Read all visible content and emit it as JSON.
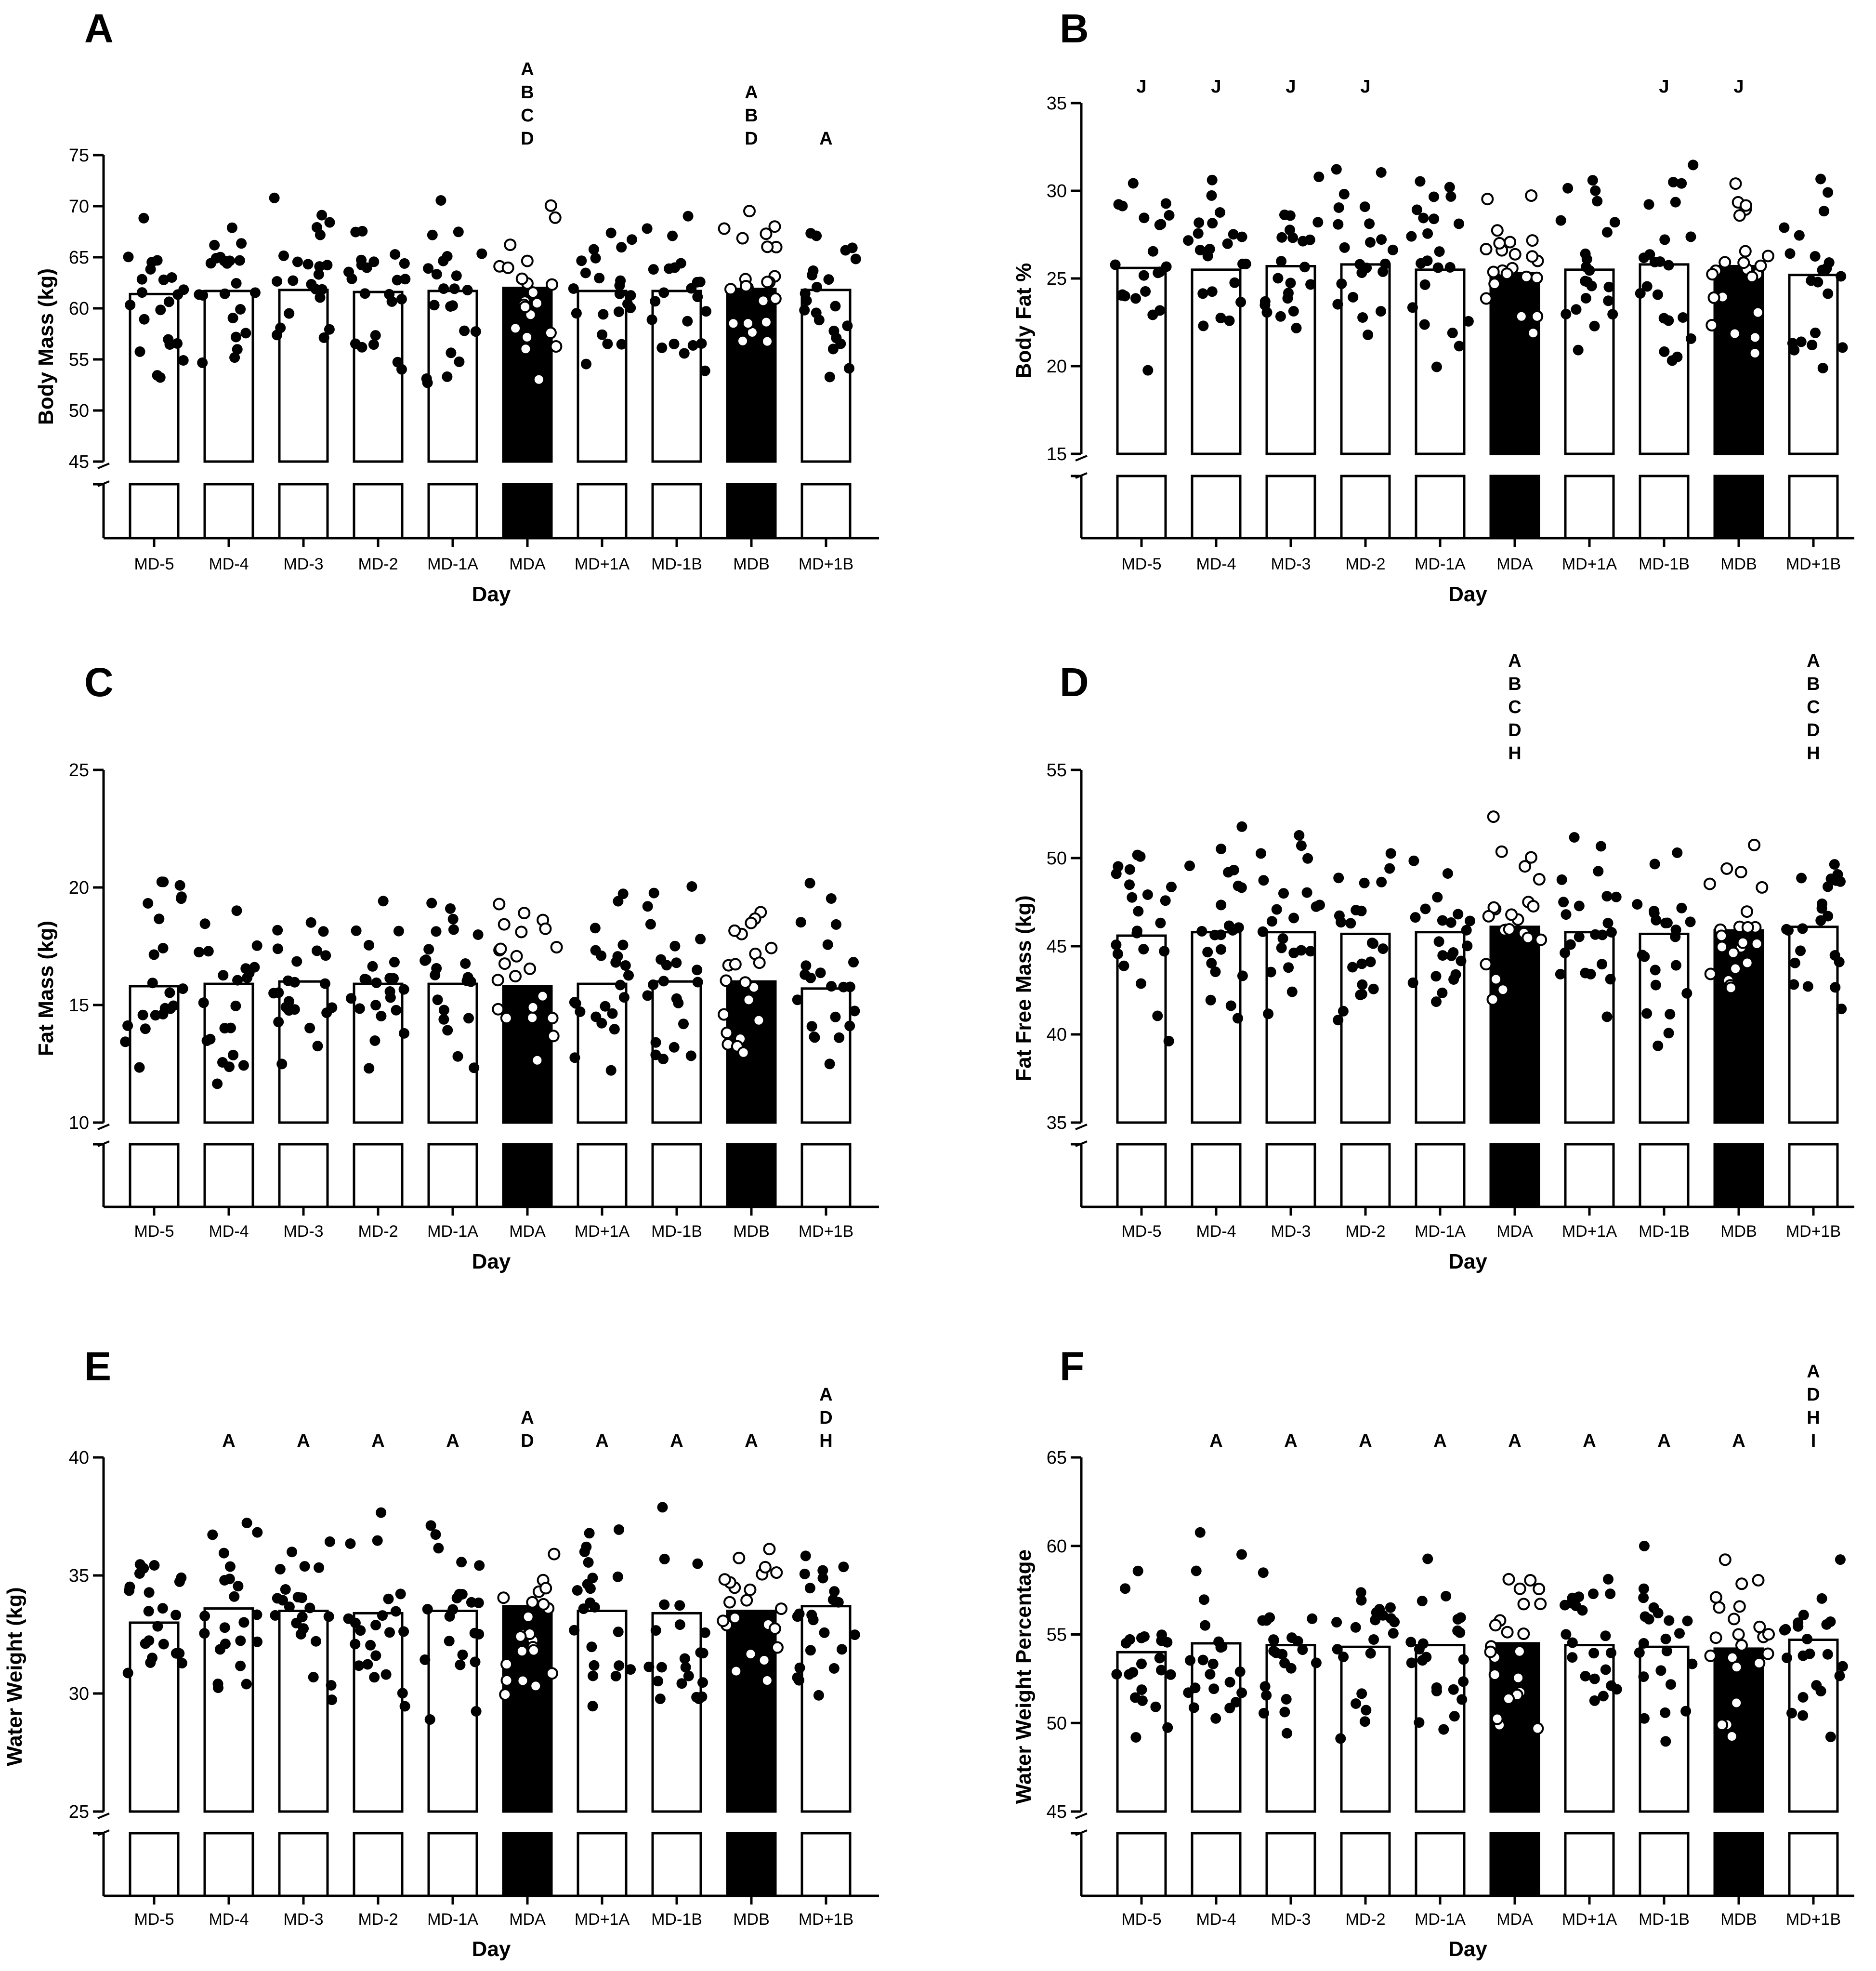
{
  "chart_data": [
    {
      "panel": "A",
      "type": "bar",
      "xlabel": "Day",
      "ylabel": "Body Mass (kg)",
      "ylim": [
        45,
        75
      ],
      "yticks": [
        45,
        50,
        55,
        60,
        65,
        70,
        75
      ],
      "categories": [
        "MD-5",
        "MD-4",
        "MD-3",
        "MD-2",
        "MD-1A",
        "MDA",
        "MD+1A",
        "MD-1B",
        "MDB",
        "MD+1B"
      ],
      "values": [
        61.4,
        61.7,
        61.8,
        61.6,
        61.7,
        62.0,
        61.7,
        61.7,
        61.9,
        61.8
      ],
      "match_days": [
        "MDA",
        "MDB"
      ],
      "significance": [
        "",
        "",
        "",
        "",
        "",
        "A\nB\nC\nD",
        "",
        "",
        "A\nB\nD",
        "A"
      ],
      "axis_break": true,
      "grid": false
    },
    {
      "panel": "B",
      "type": "bar",
      "xlabel": "Day",
      "ylabel": "Body Fat %",
      "ylim": [
        15,
        35
      ],
      "yticks": [
        15,
        20,
        25,
        30,
        35
      ],
      "categories": [
        "MD-5",
        "MD-4",
        "MD-3",
        "MD-2",
        "MD-1A",
        "MDA",
        "MD+1A",
        "MD-1B",
        "MDB",
        "MD+1B"
      ],
      "values": [
        25.6,
        25.5,
        25.7,
        25.8,
        25.5,
        25.3,
        25.5,
        25.8,
        25.7,
        25.2
      ],
      "match_days": [
        "MDA",
        "MDB"
      ],
      "significance": [
        "J",
        "J",
        "J",
        "J",
        "",
        "",
        "",
        "J",
        "J",
        ""
      ],
      "axis_break": true,
      "grid": false
    },
    {
      "panel": "C",
      "type": "bar",
      "xlabel": "Day",
      "ylabel": "Fat Mass (kg)",
      "ylim": [
        10,
        25
      ],
      "yticks": [
        10,
        15,
        20,
        25
      ],
      "categories": [
        "MD-5",
        "MD-4",
        "MD-3",
        "MD-2",
        "MD-1A",
        "MDA",
        "MD+1A",
        "MD-1B",
        "MDB",
        "MD+1B"
      ],
      "values": [
        15.8,
        15.9,
        16.0,
        15.9,
        15.9,
        15.8,
        15.9,
        16.0,
        16.0,
        15.7
      ],
      "match_days": [
        "MDA",
        "MDB"
      ],
      "significance": [
        "",
        "",
        "",
        "",
        "",
        "",
        "",
        "",
        "",
        ""
      ],
      "axis_break": true,
      "grid": false
    },
    {
      "panel": "D",
      "type": "bar",
      "xlabel": "Day",
      "ylabel": "Fat Free Mass (kg)",
      "ylim": [
        35,
        55
      ],
      "yticks": [
        35,
        40,
        45,
        50,
        55
      ],
      "categories": [
        "MD-5",
        "MD-4",
        "MD-3",
        "MD-2",
        "MD-1A",
        "MDA",
        "MD+1A",
        "MD-1B",
        "MDB",
        "MD+1B"
      ],
      "values": [
        45.6,
        45.8,
        45.8,
        45.7,
        45.8,
        46.1,
        45.8,
        45.7,
        45.9,
        46.1
      ],
      "match_days": [
        "MDA",
        "MDB"
      ],
      "significance": [
        "",
        "",
        "",
        "",
        "",
        "A\nB\nC\nD\nH",
        "",
        "",
        "",
        "A\nB\nC\nD\nH"
      ],
      "axis_break": true,
      "grid": false
    },
    {
      "panel": "E",
      "type": "bar",
      "xlabel": "Day",
      "ylabel": "Water Weight (kg)",
      "ylim": [
        25,
        40
      ],
      "yticks": [
        25,
        30,
        35,
        40
      ],
      "categories": [
        "MD-5",
        "MD-4",
        "MD-3",
        "MD-2",
        "MD-1A",
        "MDA",
        "MD+1A",
        "MD-1B",
        "MDB",
        "MD+1B"
      ],
      "values": [
        33.0,
        33.6,
        33.5,
        33.4,
        33.5,
        33.7,
        33.5,
        33.4,
        33.5,
        33.7
      ],
      "match_days": [
        "MDA",
        "MDB"
      ],
      "significance": [
        "",
        "A",
        "A",
        "A",
        "A",
        "A\nD",
        "A",
        "A",
        "A",
        "A\nD\nH"
      ],
      "axis_break": true,
      "grid": false
    },
    {
      "panel": "F",
      "type": "bar",
      "xlabel": "Day",
      "ylabel": "Water Weight Percentage",
      "ylim": [
        45,
        65
      ],
      "yticks": [
        45,
        50,
        55,
        60,
        65
      ],
      "categories": [
        "MD-5",
        "MD-4",
        "MD-3",
        "MD-2",
        "MD-1A",
        "MDA",
        "MD+1A",
        "MD-1B",
        "MDB",
        "MD+1B"
      ],
      "values": [
        54.0,
        54.5,
        54.4,
        54.3,
        54.4,
        54.5,
        54.4,
        54.3,
        54.2,
        54.7
      ],
      "match_days": [
        "MDA",
        "MDB"
      ],
      "significance": [
        "",
        "A",
        "A",
        "A",
        "A",
        "A",
        "A",
        "A",
        "A",
        "A\nD\nH\nI"
      ],
      "axis_break": true,
      "grid": false
    }
  ]
}
